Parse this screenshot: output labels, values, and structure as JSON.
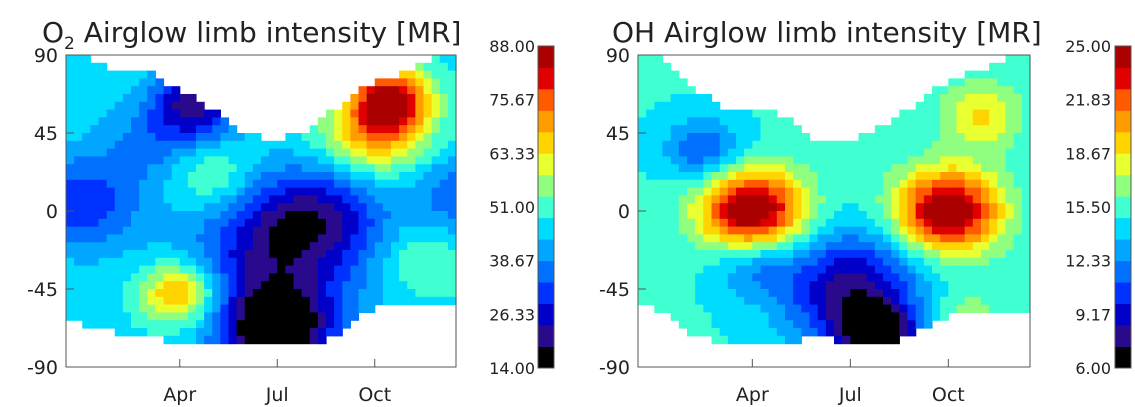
{
  "chart_data": [
    {
      "type": "heatmap",
      "title_prefix": "O",
      "title_subscript": "2",
      "title_rest": " Airglow limb intensity [MR]",
      "x_ticks": [
        "Apr",
        "Jul",
        "Oct"
      ],
      "y_ticks": [
        "90",
        "45",
        "0",
        "-45",
        "-90"
      ],
      "ylim": [
        -90,
        90
      ],
      "colorbar_ticks": [
        "88.00",
        "75.67",
        "63.33",
        "51.00",
        "38.67",
        "26.33",
        "14.00"
      ],
      "clim": [
        14,
        88
      ],
      "coverage": [
        {
          "month": 0,
          "lat_min": -65,
          "lat_max": 90
        },
        {
          "month": 1,
          "lat_min": -70,
          "lat_max": 80
        },
        {
          "month": 2,
          "lat_min": -70,
          "lat_max": 80
        },
        {
          "month": 3,
          "lat_min": -78,
          "lat_max": 70
        },
        {
          "month": 4,
          "lat_min": -78,
          "lat_max": 58
        },
        {
          "month": 5,
          "lat_min": -78,
          "lat_max": 45
        },
        {
          "month": 6,
          "lat_min": -78,
          "lat_max": 40
        },
        {
          "month": 7,
          "lat_min": -78,
          "lat_max": 48
        },
        {
          "month": 8,
          "lat_min": -70,
          "lat_max": 62
        },
        {
          "month": 9,
          "lat_min": -55,
          "lat_max": 75
        },
        {
          "month": 10,
          "lat_min": -55,
          "lat_max": 80
        },
        {
          "month": 11,
          "lat_min": -55,
          "lat_max": 90
        }
      ],
      "features": [
        {
          "month": 0.0,
          "lat": 5,
          "value": 30,
          "spread": 1.5
        },
        {
          "month": 2.2,
          "lat": 40,
          "value": 38,
          "spread": 1.3
        },
        {
          "month": 3.5,
          "lat": 62,
          "value": 22,
          "spread": 1.1
        },
        {
          "month": 3.0,
          "lat": -48,
          "value": 74,
          "spread": 1.0
        },
        {
          "month": 4.0,
          "lat": 20,
          "value": 57,
          "spread": 1.0
        },
        {
          "month": 5.8,
          "lat": -40,
          "value": 28,
          "spread": 2.3
        },
        {
          "month": 6.0,
          "lat": -70,
          "value": 16,
          "spread": 1.3
        },
        {
          "month": 6.5,
          "lat": -5,
          "value": 30,
          "spread": 1.7
        },
        {
          "month": 9.5,
          "lat": 65,
          "value": 82,
          "spread": 1.0
        },
        {
          "month": 9.0,
          "lat": 45,
          "value": 70,
          "spread": 1.3
        },
        {
          "month": 10.5,
          "lat": -30,
          "value": 55,
          "spread": 1.0
        },
        {
          "month": 11.8,
          "lat": 10,
          "value": 33,
          "spread": 1.2
        },
        {
          "month": 8.0,
          "lat": 0,
          "value": 38,
          "spread": 1.4
        }
      ],
      "background_value": 47
    },
    {
      "type": "heatmap",
      "title_prefix": "OH Airglow limb intensity [MR]",
      "title_subscript": "",
      "title_rest": "",
      "x_ticks": [
        "Apr",
        "Jul",
        "Oct"
      ],
      "y_ticks": [
        "90",
        "45",
        "0",
        "-45",
        "-90"
      ],
      "ylim": [
        -90,
        90
      ],
      "colorbar_ticks": [
        "25.00",
        "21.83",
        "18.67",
        "15.50",
        "12.33",
        "9.17",
        "6.00"
      ],
      "clim": [
        6,
        25
      ],
      "coverage": [
        {
          "month": 0,
          "lat_min": -55,
          "lat_max": 90
        },
        {
          "month": 1,
          "lat_min": -70,
          "lat_max": 75
        },
        {
          "month": 2,
          "lat_min": -75,
          "lat_max": 60
        },
        {
          "month": 3,
          "lat_min": -78,
          "lat_max": 60
        },
        {
          "month": 4,
          "lat_min": -78,
          "lat_max": 55
        },
        {
          "month": 5,
          "lat_min": -70,
          "lat_max": 40
        },
        {
          "month": 6,
          "lat_min": -78,
          "lat_max": 40
        },
        {
          "month": 7,
          "lat_min": -78,
          "lat_max": 50
        },
        {
          "month": 8,
          "lat_min": -70,
          "lat_max": 62
        },
        {
          "month": 9,
          "lat_min": -60,
          "lat_max": 75
        },
        {
          "month": 10,
          "lat_min": -60,
          "lat_max": 82
        },
        {
          "month": 11,
          "lat_min": -60,
          "lat_max": 90
        }
      ],
      "features": [
        {
          "month": 3.0,
          "lat": 0,
          "value": 26,
          "spread": 1.3
        },
        {
          "month": 9.0,
          "lat": 0,
          "value": 26,
          "spread": 1.3
        },
        {
          "month": 6.0,
          "lat": -45,
          "value": 8,
          "spread": 1.8
        },
        {
          "month": 6.8,
          "lat": -72,
          "value": 6.5,
          "spread": 1.0
        },
        {
          "month": 1.5,
          "lat": 35,
          "value": 11,
          "spread": 1.0
        },
        {
          "month": 10.0,
          "lat": 55,
          "value": 19,
          "spread": 1.0
        },
        {
          "month": 3.0,
          "lat": -30,
          "value": 12,
          "spread": 1.0
        },
        {
          "month": 9.5,
          "lat": -60,
          "value": 17,
          "spread": 1.0
        }
      ],
      "background_value": 15.0
    }
  ],
  "colormap": [
    "#000000",
    "#2a0a8c",
    "#0000c8",
    "#0032ff",
    "#0070ff",
    "#00a6ff",
    "#00dcff",
    "#40ffd0",
    "#90ff80",
    "#e8ff30",
    "#ffd400",
    "#ff9c00",
    "#ff5a00",
    "#e00000",
    "#aa0000"
  ]
}
